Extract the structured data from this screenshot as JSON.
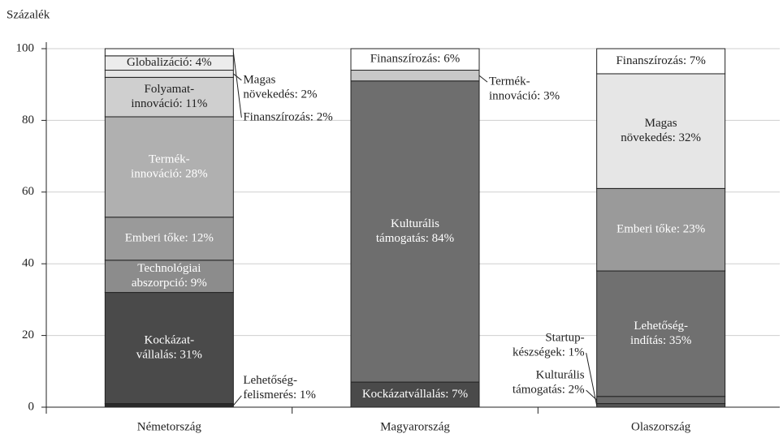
{
  "chart_data": {
    "type": "bar",
    "stacked": true,
    "y_label": "Százalék",
    "ylim": [
      0,
      100
    ],
    "yticks": [
      0,
      20,
      40,
      60,
      80,
      100
    ],
    "grid": true,
    "bars": [
      {
        "category": "Németország",
        "segments": [
          {
            "label": [
              "Lehetőség-",
              "felismerés: 1%"
            ],
            "value": 1,
            "color": "#2b2b2b"
          },
          {
            "label": [
              "Kockázat-",
              "vállalás: 31%"
            ],
            "value": 31,
            "color": "#4a4a4a"
          },
          {
            "label": [
              "Technológiai",
              "abszorpció: 9%"
            ],
            "value": 9,
            "color": "#8c8c8c"
          },
          {
            "label": [
              "Emberi tőke: 12%"
            ],
            "value": 12,
            "color": "#9a9a9a"
          },
          {
            "label": [
              "Termék-",
              "innováció: 28%"
            ],
            "value": 28,
            "color": "#b0b0b0"
          },
          {
            "label": [
              "Folyamat-",
              "innováció: 11%"
            ],
            "value": 11,
            "color": "#cfcfcf"
          },
          {
            "label": [
              "Magas",
              "növekedés: 2%"
            ],
            "value": 2,
            "color": "#e6e6e6"
          },
          {
            "label": [
              "Globalizáció: 4%"
            ],
            "value": 4,
            "color": "#ececec"
          },
          {
            "label": [
              "Finanszírozás: 2%"
            ],
            "value": 2,
            "color": "#ffffff"
          }
        ]
      },
      {
        "category": "Magyarország",
        "segments": [
          {
            "label": [
              "Kockázatvállalás: 7%"
            ],
            "value": 7,
            "color": "#4a4a4a"
          },
          {
            "label": [
              "Kulturális",
              "támogatás: 84%"
            ],
            "value": 84,
            "color": "#6e6e6e"
          },
          {
            "label": [
              "Termék-",
              "innováció: 3%"
            ],
            "value": 3,
            "color": "#c8c8c8"
          },
          {
            "label": [
              "Finanszírozás: 6%"
            ],
            "value": 6,
            "color": "#ffffff"
          }
        ]
      },
      {
        "category": "Olaszország",
        "segments": [
          {
            "label": [
              "Startup-",
              "készségek: 1%"
            ],
            "value": 1,
            "color": "#555555"
          },
          {
            "label": [
              "Kulturális",
              "támogatás: 2%"
            ],
            "value": 2,
            "color": "#6a6a6a"
          },
          {
            "label": [
              "Lehetőség-",
              "indítás: 35%"
            ],
            "value": 35,
            "color": "#707070"
          },
          {
            "label": [
              "Emberi tőke: 23%"
            ],
            "value": 23,
            "color": "#9a9a9a"
          },
          {
            "label": [
              "Magas",
              "növekedés: 32%"
            ],
            "value": 32,
            "color": "#e6e6e6"
          },
          {
            "label": [
              "Finanszírozás: 7%"
            ],
            "value": 7,
            "color": "#ffffff"
          }
        ]
      }
    ]
  }
}
